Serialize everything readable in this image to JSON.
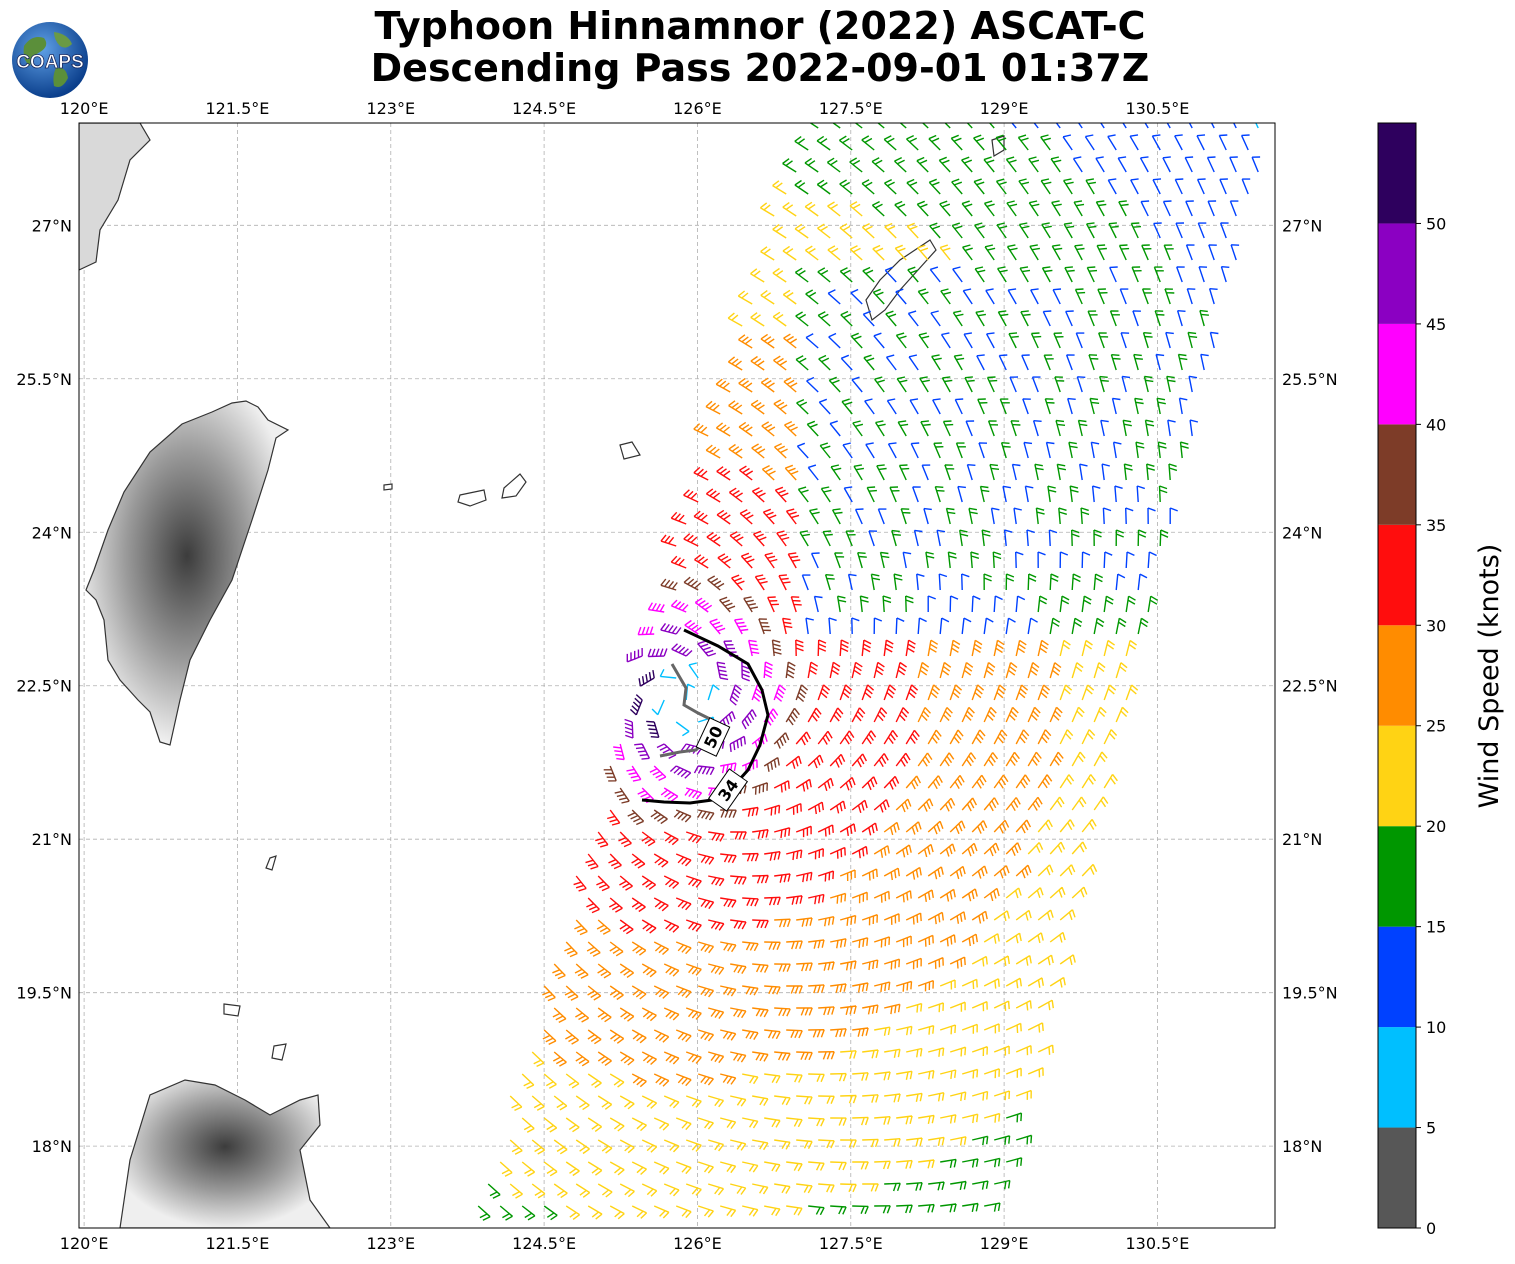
{
  "title": {
    "line1": "Typhoon Hinnamnor (2022) ASCAT-C",
    "line2": "Descending Pass 2022-09-01 01:37Z"
  },
  "logo": {
    "text": "COAPS",
    "icon": "globe-logo-icon"
  },
  "map": {
    "lon_range": [
      119.95,
      131.65
    ],
    "lat_range": [
      17.2,
      28.0
    ],
    "lon_ticks": [
      "120°E",
      "121.5°E",
      "123°E",
      "124.5°E",
      "126°E",
      "127.5°E",
      "129°E",
      "130.5°E"
    ],
    "lon_tick_values": [
      120,
      121.5,
      123,
      124.5,
      126,
      127.5,
      129,
      130.5
    ],
    "lat_ticks": [
      "27°N",
      "25.5°N",
      "24°N",
      "22.5°N",
      "21°N",
      "19.5°N",
      "18°N"
    ],
    "lat_tick_values": [
      27,
      25.5,
      24,
      22.5,
      21,
      19.5,
      18
    ],
    "grid": true,
    "storm_center": [
      125.85,
      22.35
    ],
    "wind_radii_contours": [
      {
        "label": "34",
        "color": "#000000",
        "unit": "knots"
      },
      {
        "label": "50",
        "color": "#666666",
        "unit": "knots"
      }
    ]
  },
  "colorbar": {
    "label": "Wind Speed (knots)",
    "ticks": [
      "0",
      "5",
      "10",
      "15",
      "20",
      "25",
      "30",
      "35",
      "40",
      "45",
      "50"
    ],
    "bins": [
      {
        "min": 0,
        "max": 5,
        "color": "#575757"
      },
      {
        "min": 5,
        "max": 10,
        "color": "#00bfff"
      },
      {
        "min": 10,
        "max": 15,
        "color": "#0041ff"
      },
      {
        "min": 15,
        "max": 20,
        "color": "#009700"
      },
      {
        "min": 20,
        "max": 25,
        "color": "#ffd314"
      },
      {
        "min": 25,
        "max": 30,
        "color": "#ff8c00"
      },
      {
        "min": 30,
        "max": 35,
        "color": "#ff0d0d"
      },
      {
        "min": 35,
        "max": 40,
        "color": "#7d3c28"
      },
      {
        "min": 40,
        "max": 45,
        "color": "#ff00ff"
      },
      {
        "min": 45,
        "max": 50,
        "color": "#8b00c2"
      },
      {
        "min": 50,
        "max": 55,
        "color": "#2e005e"
      }
    ]
  }
}
